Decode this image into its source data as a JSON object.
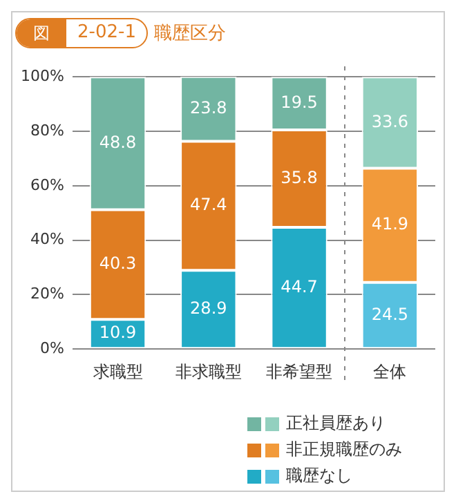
{
  "chart_data": {
    "type": "bar",
    "title": "図 2-02-1 職歴区分",
    "stacked": true,
    "data_labels": true,
    "grid": "y",
    "legend": "bottom right",
    "categories": [
      "求職型",
      "非求職型",
      "非希望型",
      "全体"
    ],
    "series": [
      {
        "name": "職歴なし",
        "color": "#22abc6",
        "colors": [
          "#22abc6",
          "#22abc6",
          "#22abc6",
          "#56c1e0"
        ],
        "values": [
          10.9,
          28.9,
          44.7,
          24.5
        ]
      },
      {
        "name": "非正規職歴のみ",
        "color": "#e07d22",
        "colors": [
          "#e07d22",
          "#e07d22",
          "#e07d22",
          "#f29a3a"
        ],
        "values": [
          40.3,
          47.4,
          35.8,
          41.9
        ]
      },
      {
        "name": "正社員歴あり",
        "color": "#72b5a2",
        "colors": [
          "#72b5a2",
          "#72b5a2",
          "#72b5a2",
          "#93d0bf"
        ],
        "values": [
          48.8,
          23.8,
          19.5,
          33.6
        ]
      }
    ],
    "ylim": [
      0,
      100
    ],
    "yticks": [
      {
        "value": 0,
        "label": "0%"
      },
      {
        "value": 20,
        "label": "20%"
      },
      {
        "value": 40,
        "label": "40%"
      },
      {
        "value": 60,
        "label": "60%"
      },
      {
        "value": 80,
        "label": "80%"
      },
      {
        "value": 100,
        "label": "100%"
      }
    ]
  }
}
